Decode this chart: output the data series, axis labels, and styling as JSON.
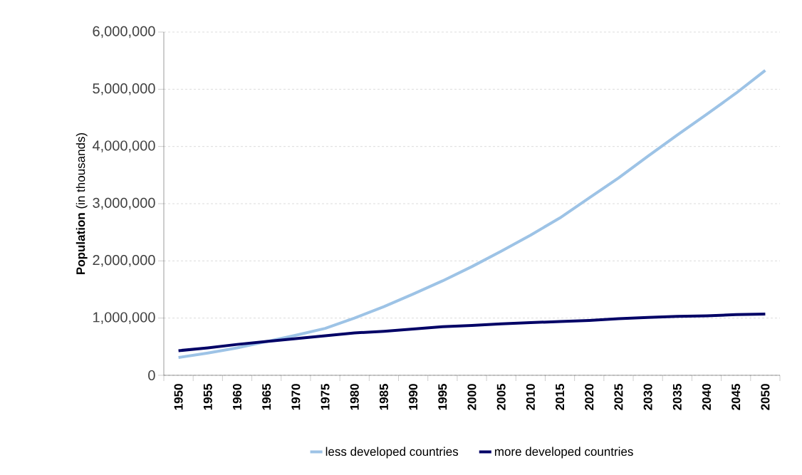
{
  "chart_data": {
    "type": "line",
    "ylabel": "**Population** (in thousands)",
    "categories": [
      "1950",
      "1955",
      "1960",
      "1965",
      "1970",
      "1975",
      "1980",
      "1985",
      "1990",
      "1995",
      "2000",
      "2005",
      "2010",
      "2015",
      "2020",
      "2025",
      "2030",
      "2035",
      "2040",
      "2045",
      "2050"
    ],
    "series": [
      {
        "name": "less developed countries",
        "color": "#9dc3e6",
        "values": [
          310000,
          390000,
          480000,
          590000,
          700000,
          820000,
          1000000,
          1200000,
          1420000,
          1650000,
          1900000,
          2170000,
          2450000,
          2750000,
          3100000,
          3450000,
          3830000,
          4200000,
          4560000,
          4930000,
          5330000
        ]
      },
      {
        "name": "more developed countries",
        "color": "#000066",
        "values": [
          430000,
          480000,
          540000,
          590000,
          640000,
          690000,
          740000,
          770000,
          810000,
          850000,
          870000,
          900000,
          920000,
          940000,
          960000,
          990000,
          1010000,
          1030000,
          1040000,
          1060000,
          1070000
        ]
      }
    ],
    "ylim": [
      0,
      6000000
    ],
    "yticks": [
      0,
      {
        "value": 1000000,
        "label": "1,000,000"
      },
      {
        "value": 2000000,
        "label": "2,000,000"
      },
      {
        "value": 3000000,
        "label": "3,000,000"
      },
      {
        "value": 4000000,
        "label": "4,000,000"
      },
      {
        "value": 5000000,
        "label": "5,000,000"
      },
      {
        "value": 6000000,
        "label": "6,000,000"
      }
    ],
    "grid": "y",
    "legend": "bottom",
    "marker": "none",
    "line_style": "solid"
  }
}
